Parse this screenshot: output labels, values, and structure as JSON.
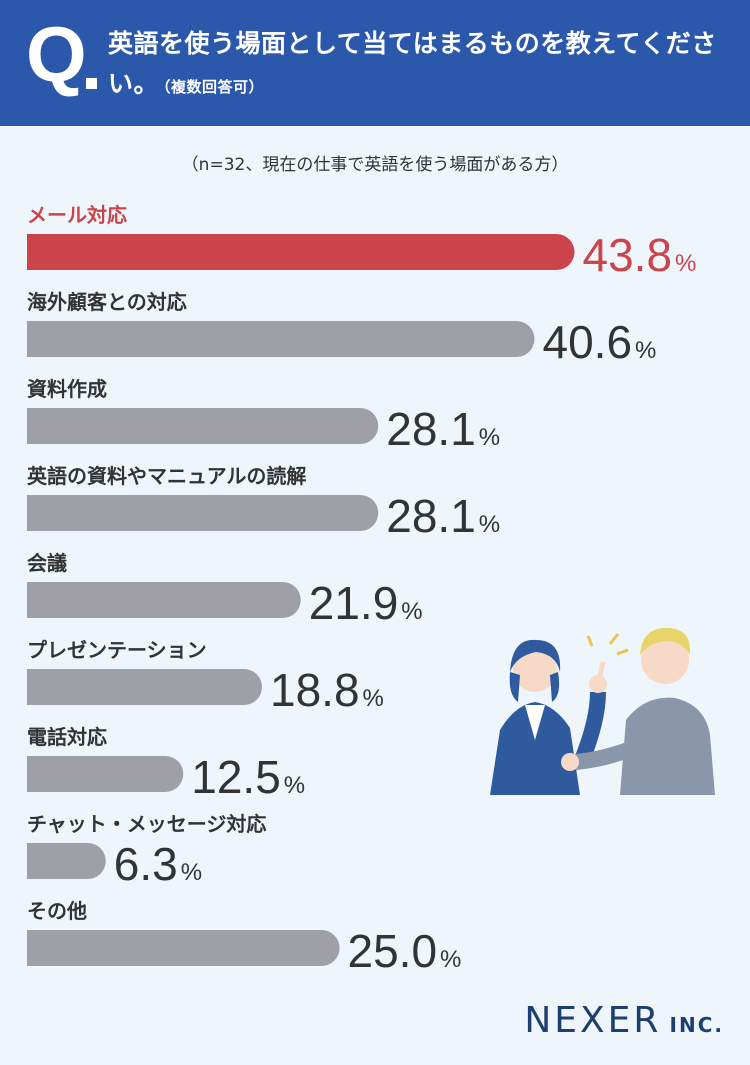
{
  "header": {
    "q_mark": "Q",
    "question": "英語を使う場面として当てはまるものを教えてください。",
    "note": "（複数回答可）"
  },
  "subtitle": "（n=32、現在の仕事で英語を使う場面がある方）",
  "brand": {
    "name": "NEXER",
    "suffix": "INC."
  },
  "colors": {
    "highlight": "#cc444b",
    "bar": "#9fa0a5",
    "header": "#2b58aa",
    "background": "#eef5fb"
  },
  "chart_data": {
    "type": "bar",
    "orientation": "horizontal",
    "unit": "%",
    "categories": [
      "メール対応",
      "海外顧客との対応",
      "資料作成",
      "英語の資料やマニュアルの読解",
      "会議",
      "プレゼンテーション",
      "電話対応",
      "チャット・メッセージ対応",
      "その他"
    ],
    "values": [
      43.8,
      40.6,
      28.1,
      28.1,
      21.9,
      18.8,
      12.5,
      6.3,
      25.0
    ],
    "labels": [
      "43.8",
      "40.6",
      "28.1",
      "28.1",
      "21.9",
      "18.8",
      "12.5",
      "6.3",
      "25.0"
    ],
    "highlight_index": 0
  }
}
